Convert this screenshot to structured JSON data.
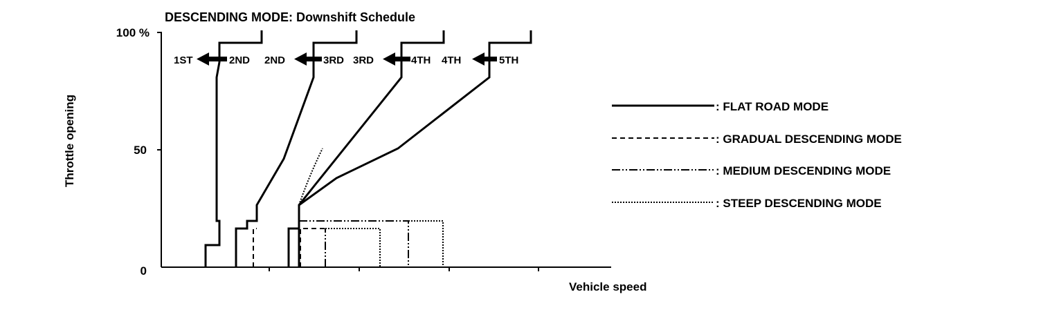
{
  "title": "DESCENDING MODE: Downshift Schedule",
  "y_axis": {
    "label": "Throttle opening",
    "ticks": [
      "100 %",
      "50",
      "0"
    ]
  },
  "x_axis": {
    "label": "Vehicle speed"
  },
  "shifts": [
    {
      "from": "2ND",
      "to": "1ST"
    },
    {
      "from": "3RD",
      "to": "2ND"
    },
    {
      "from": "4TH",
      "to": "3RD"
    },
    {
      "from": "5TH",
      "to": "4TH"
    }
  ],
  "legend": [
    {
      "style": "solid",
      "label": ": FLAT ROAD MODE"
    },
    {
      "style": "dashed",
      "label": ": GRADUAL DESCENDING MODE"
    },
    {
      "style": "dash-dot",
      "label": ": MEDIUM DESCENDING MODE"
    },
    {
      "style": "dotted",
      "label": ": STEEP DESCENDING MODE"
    }
  ]
}
